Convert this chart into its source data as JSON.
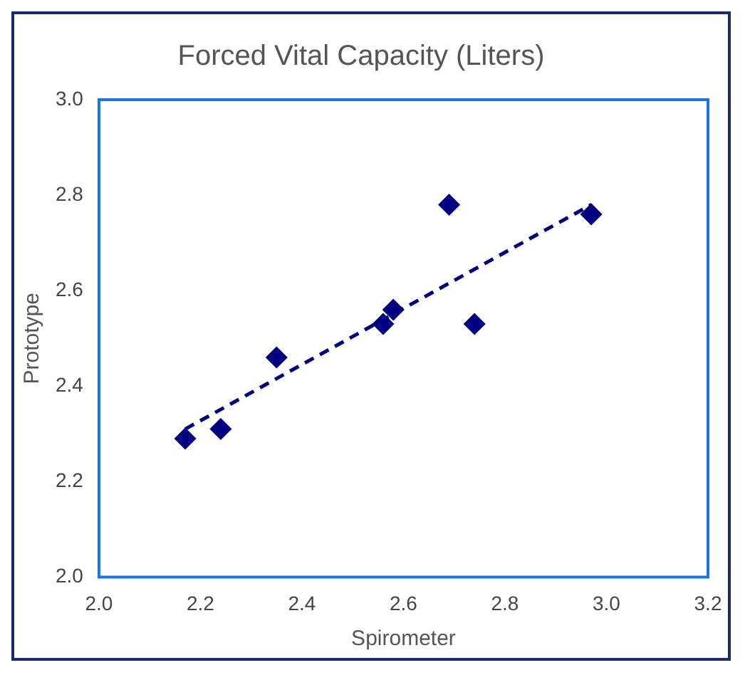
{
  "chart_data": {
    "type": "scatter",
    "title": "Forced Vital Capacity (Liters)",
    "xlabel": "Spirometer",
    "ylabel": "Prototype",
    "xlim": [
      2.0,
      3.2
    ],
    "xticks": [
      {
        "value": 2.0,
        "label": "2.0"
      },
      {
        "value": 2.2,
        "label": "2.2"
      },
      {
        "value": 2.4,
        "label": "2.4"
      },
      {
        "value": 2.6,
        "label": "2.6"
      },
      {
        "value": 2.8,
        "label": "2.8"
      },
      {
        "value": 3.0,
        "label": "3.0"
      },
      {
        "value": 3.2,
        "label": "3.2"
      }
    ],
    "ylim": [
      2.0,
      3.0
    ],
    "yticks": [
      {
        "value": 2.0,
        "label": "2.0"
      },
      {
        "value": 2.2,
        "label": "2.2"
      },
      {
        "value": 2.4,
        "label": "2.4"
      },
      {
        "value": 2.6,
        "label": "2.6"
      },
      {
        "value": 2.8,
        "label": "2.8"
      },
      {
        "value": 3.0,
        "label": "3.0"
      }
    ],
    "grid": false,
    "legend": false,
    "series": [
      {
        "type": "scatter",
        "color": "#000080",
        "marker": "diamond",
        "x": [
          2.17,
          2.24,
          2.35,
          2.56,
          2.58,
          2.69,
          2.74,
          2.97
        ],
        "values": [
          2.29,
          2.31,
          2.46,
          2.53,
          2.56,
          2.78,
          2.53,
          2.76
        ]
      },
      {
        "type": "line",
        "color": "#000080",
        "marker": "none",
        "line_style": "dashed",
        "x": [
          2.17,
          2.97
        ],
        "values": [
          2.31,
          2.78
        ]
      }
    ]
  }
}
